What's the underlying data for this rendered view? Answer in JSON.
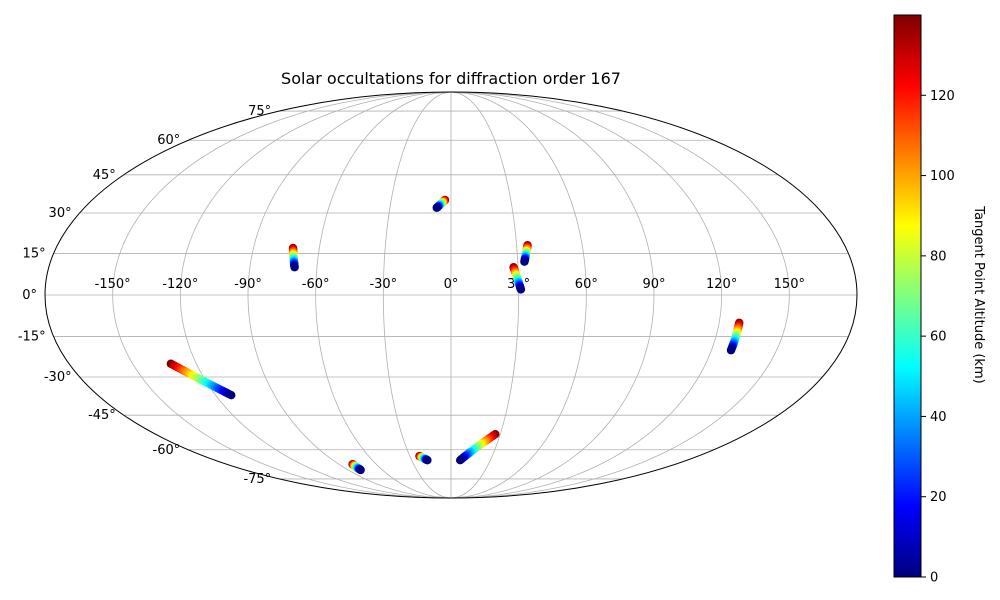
{
  "chart_data": {
    "type": "scatter",
    "projection": "mollweide",
    "title": "Solar occultations for diffraction order 167",
    "grid": true,
    "longitude_ticks": [
      -150,
      -120,
      -90,
      -60,
      -30,
      0,
      30,
      60,
      90,
      120,
      150
    ],
    "longitude_tick_labels": [
      "-150°",
      "-120°",
      "-90°",
      "-60°",
      "-30°",
      "0°",
      "30°",
      "60°",
      "90°",
      "120°",
      "150°"
    ],
    "latitude_ticks": [
      -75,
      -60,
      -45,
      -30,
      -15,
      0,
      15,
      30,
      45,
      60,
      75
    ],
    "latitude_tick_labels": [
      "-75°",
      "-60°",
      "-45°",
      "-30°",
      "-15°",
      "0°",
      "15°",
      "30°",
      "45°",
      "60°",
      "75°"
    ],
    "colorbar": {
      "label": "Tangent Point Altitude (km)",
      "colormap": "jet",
      "range": [
        0,
        140
      ],
      "ticks": [
        0,
        20,
        40,
        60,
        80,
        100,
        120
      ],
      "tick_labels": [
        "0",
        "20",
        "40",
        "60",
        "80",
        "100",
        "120"
      ]
    },
    "series": [
      {
        "lon_start": -3,
        "lat_start": 35,
        "lon_end": -7,
        "lat_end": 32,
        "alt_start": 140,
        "alt_end": 0
      },
      {
        "lon_start": -72,
        "lat_start": 17,
        "lon_end": -70,
        "lat_end": 10,
        "alt_start": 140,
        "alt_end": 0
      },
      {
        "lon_start": 35,
        "lat_start": 18,
        "lon_end": 33,
        "lat_end": 12,
        "alt_start": 140,
        "alt_end": 0
      },
      {
        "lon_start": 28,
        "lat_start": 10,
        "lon_end": 31,
        "lat_end": 2,
        "alt_start": 140,
        "alt_end": 0
      },
      {
        "lon_start": -132,
        "lat_start": -25,
        "lon_end": -112,
        "lat_end": -37,
        "alt_start": 140,
        "alt_end": 0
      },
      {
        "lon_start": 129,
        "lat_start": -10,
        "lon_end": 129,
        "lat_end": -20,
        "alt_start": 140,
        "alt_end": 0
      },
      {
        "lon_start": 27,
        "lat_start": -53,
        "lon_end": 7,
        "lat_end": -65,
        "alt_start": 140,
        "alt_end": 0
      },
      {
        "lon_start": -23,
        "lat_start": -63,
        "lon_end": -18,
        "lat_end": -65,
        "alt_start": 140,
        "alt_end": 0
      },
      {
        "lon_start": -79,
        "lat_start": -67,
        "lon_end": -79,
        "lat_end": -70,
        "alt_start": 140,
        "alt_end": 0
      }
    ]
  }
}
